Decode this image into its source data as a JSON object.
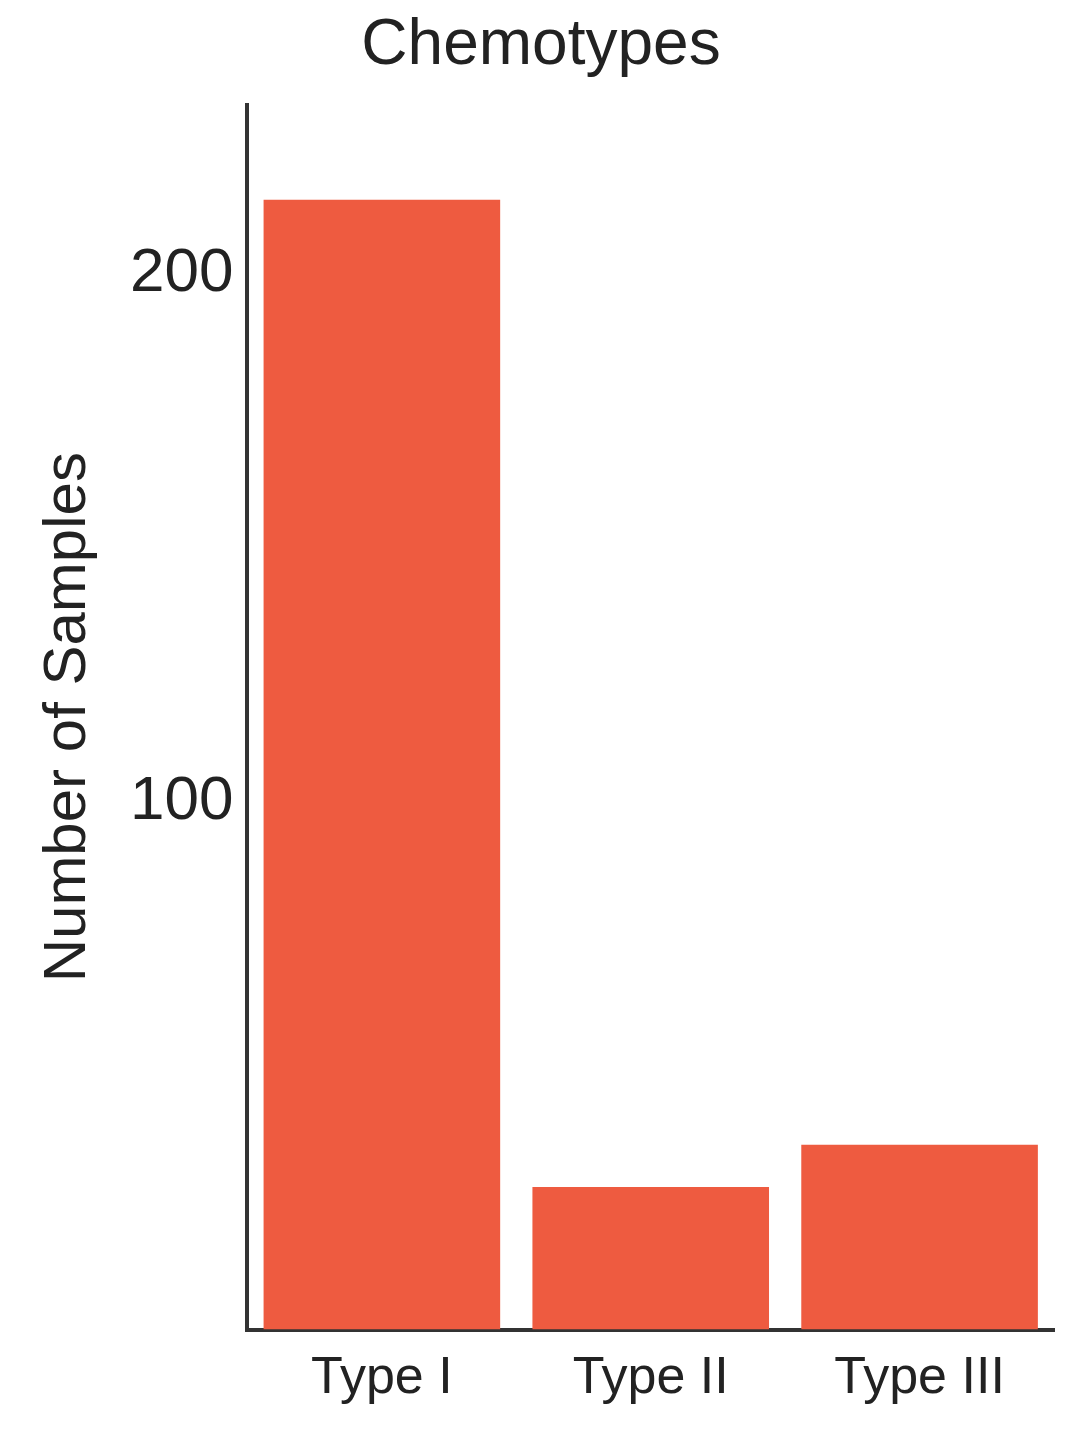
{
  "chart_data": {
    "type": "bar",
    "title": "Chemotypes",
    "ylabel": "Number of Samples",
    "categories": [
      "Type I",
      "Type II",
      "Type III"
    ],
    "values": [
      214,
      27,
      35
    ],
    "color": "#ee5b40",
    "ylim": [
      0,
      232
    ],
    "yticks": [
      100,
      200
    ],
    "grid": false,
    "legend": false
  }
}
